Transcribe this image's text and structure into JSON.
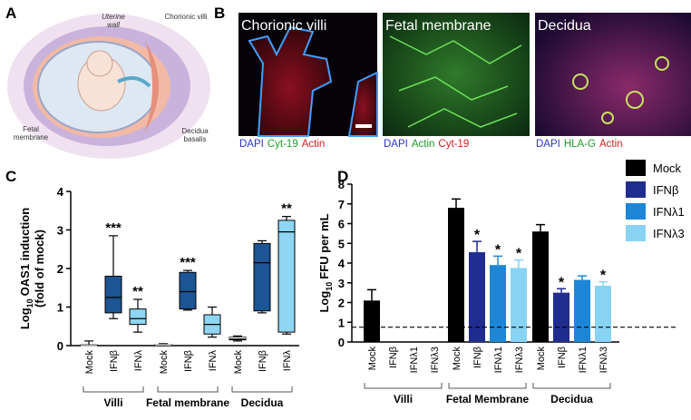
{
  "panels": [
    "A",
    "B",
    "C",
    "D"
  ],
  "illustration": {
    "labels": [
      "Uterine wall",
      "Chorionic villi",
      "Fetal membrane",
      "Decidua basalis"
    ]
  },
  "micrographs": [
    {
      "title": "Chorionic villi",
      "stains": [
        {
          "text": "DAPI",
          "color": "#2a35c8"
        },
        {
          "text": "Cyt-19",
          "color": "#1e9e2a"
        },
        {
          "text": "Actin",
          "color": "#d42020"
        }
      ]
    },
    {
      "title": "Fetal membrane",
      "stains": [
        {
          "text": "DAPI",
          "color": "#2a35c8"
        },
        {
          "text": "Actin",
          "color": "#1e9e2a"
        },
        {
          "text": "Cyt-19",
          "color": "#d42020"
        }
      ]
    },
    {
      "title": "Decidua",
      "stains": [
        {
          "text": "DAPI",
          "color": "#2a35c8"
        },
        {
          "text": "HLA-G",
          "color": "#1e9e2a"
        },
        {
          "text": "Actin",
          "color": "#d42020"
        }
      ]
    }
  ],
  "chart_data": [
    {
      "type": "box",
      "y_label": {
        "text": "Log",
        "subscript": "10",
        "rest": "OAS1 induction",
        "line2": "(fold of mock)"
      },
      "categories": [
        "Villi",
        "Fetal membrane",
        "Decidua"
      ],
      "ylim": [
        0,
        4
      ],
      "yticks": [
        0,
        1,
        2,
        3,
        4
      ],
      "series": [
        {
          "name": "Mock",
          "color": "#111111",
          "min": [
            0,
            0,
            0.12
          ],
          "q1": [
            0,
            0,
            0.15
          ],
          "median": [
            0,
            0.02,
            0.2
          ],
          "q3": [
            0.02,
            0.03,
            0.22
          ],
          "max": [
            0.12,
            0.05,
            0.25
          ],
          "labels": [
            null,
            null,
            null
          ]
        },
        {
          "name": "IFNβ",
          "color": "#1b5594",
          "min": [
            0.7,
            0.92,
            0.85
          ],
          "q1": [
            0.85,
            0.95,
            0.9
          ],
          "median": [
            1.25,
            1.4,
            2.15
          ],
          "q3": [
            1.8,
            1.9,
            2.65
          ],
          "max": [
            2.85,
            1.95,
            2.72
          ],
          "labels": [
            "***",
            "***",
            null
          ]
        },
        {
          "name": "IFNλ",
          "color": "#8ed6f3",
          "min": [
            0.35,
            0.22,
            0.3
          ],
          "q1": [
            0.55,
            0.3,
            0.35
          ],
          "median": [
            0.7,
            0.55,
            2.95
          ],
          "q3": [
            0.95,
            0.8,
            3.25
          ],
          "max": [
            1.2,
            1.0,
            3.35
          ],
          "labels": [
            "**",
            null,
            "**"
          ]
        }
      ]
    },
    {
      "type": "bar",
      "y_label": {
        "text": "Log",
        "subscript": "10",
        "rest": "FFU per mL"
      },
      "categories": [
        "Villi",
        "Fetal Membrane",
        "Decidua"
      ],
      "ylim": [
        0,
        8
      ],
      "yticks": [
        0,
        1,
        2,
        3,
        4,
        5,
        6,
        7,
        8
      ],
      "threshold": 0.75,
      "legend": "right",
      "series": [
        {
          "name": "Mock",
          "color": "#000000",
          "values": [
            2.1,
            6.8,
            5.6
          ],
          "errors": [
            0.55,
            0.45,
            0.35
          ],
          "labels": [
            null,
            null,
            null
          ]
        },
        {
          "name": "IFNβ",
          "color": "#1f2d8f",
          "values": [
            null,
            4.55,
            2.5
          ],
          "errors": [
            null,
            0.55,
            0.2
          ],
          "labels": [
            null,
            "*",
            "*"
          ]
        },
        {
          "name": "IFNλ1",
          "color": "#1e86d6",
          "values": [
            null,
            3.9,
            3.15
          ],
          "errors": [
            null,
            0.45,
            0.2
          ],
          "labels": [
            null,
            "*",
            null
          ]
        },
        {
          "name": "IFNλ3",
          "color": "#88d3f3",
          "values": [
            null,
            3.75,
            2.85
          ],
          "errors": [
            null,
            0.4,
            0.2
          ],
          "labels": [
            null,
            "*",
            "*"
          ]
        }
      ]
    }
  ]
}
